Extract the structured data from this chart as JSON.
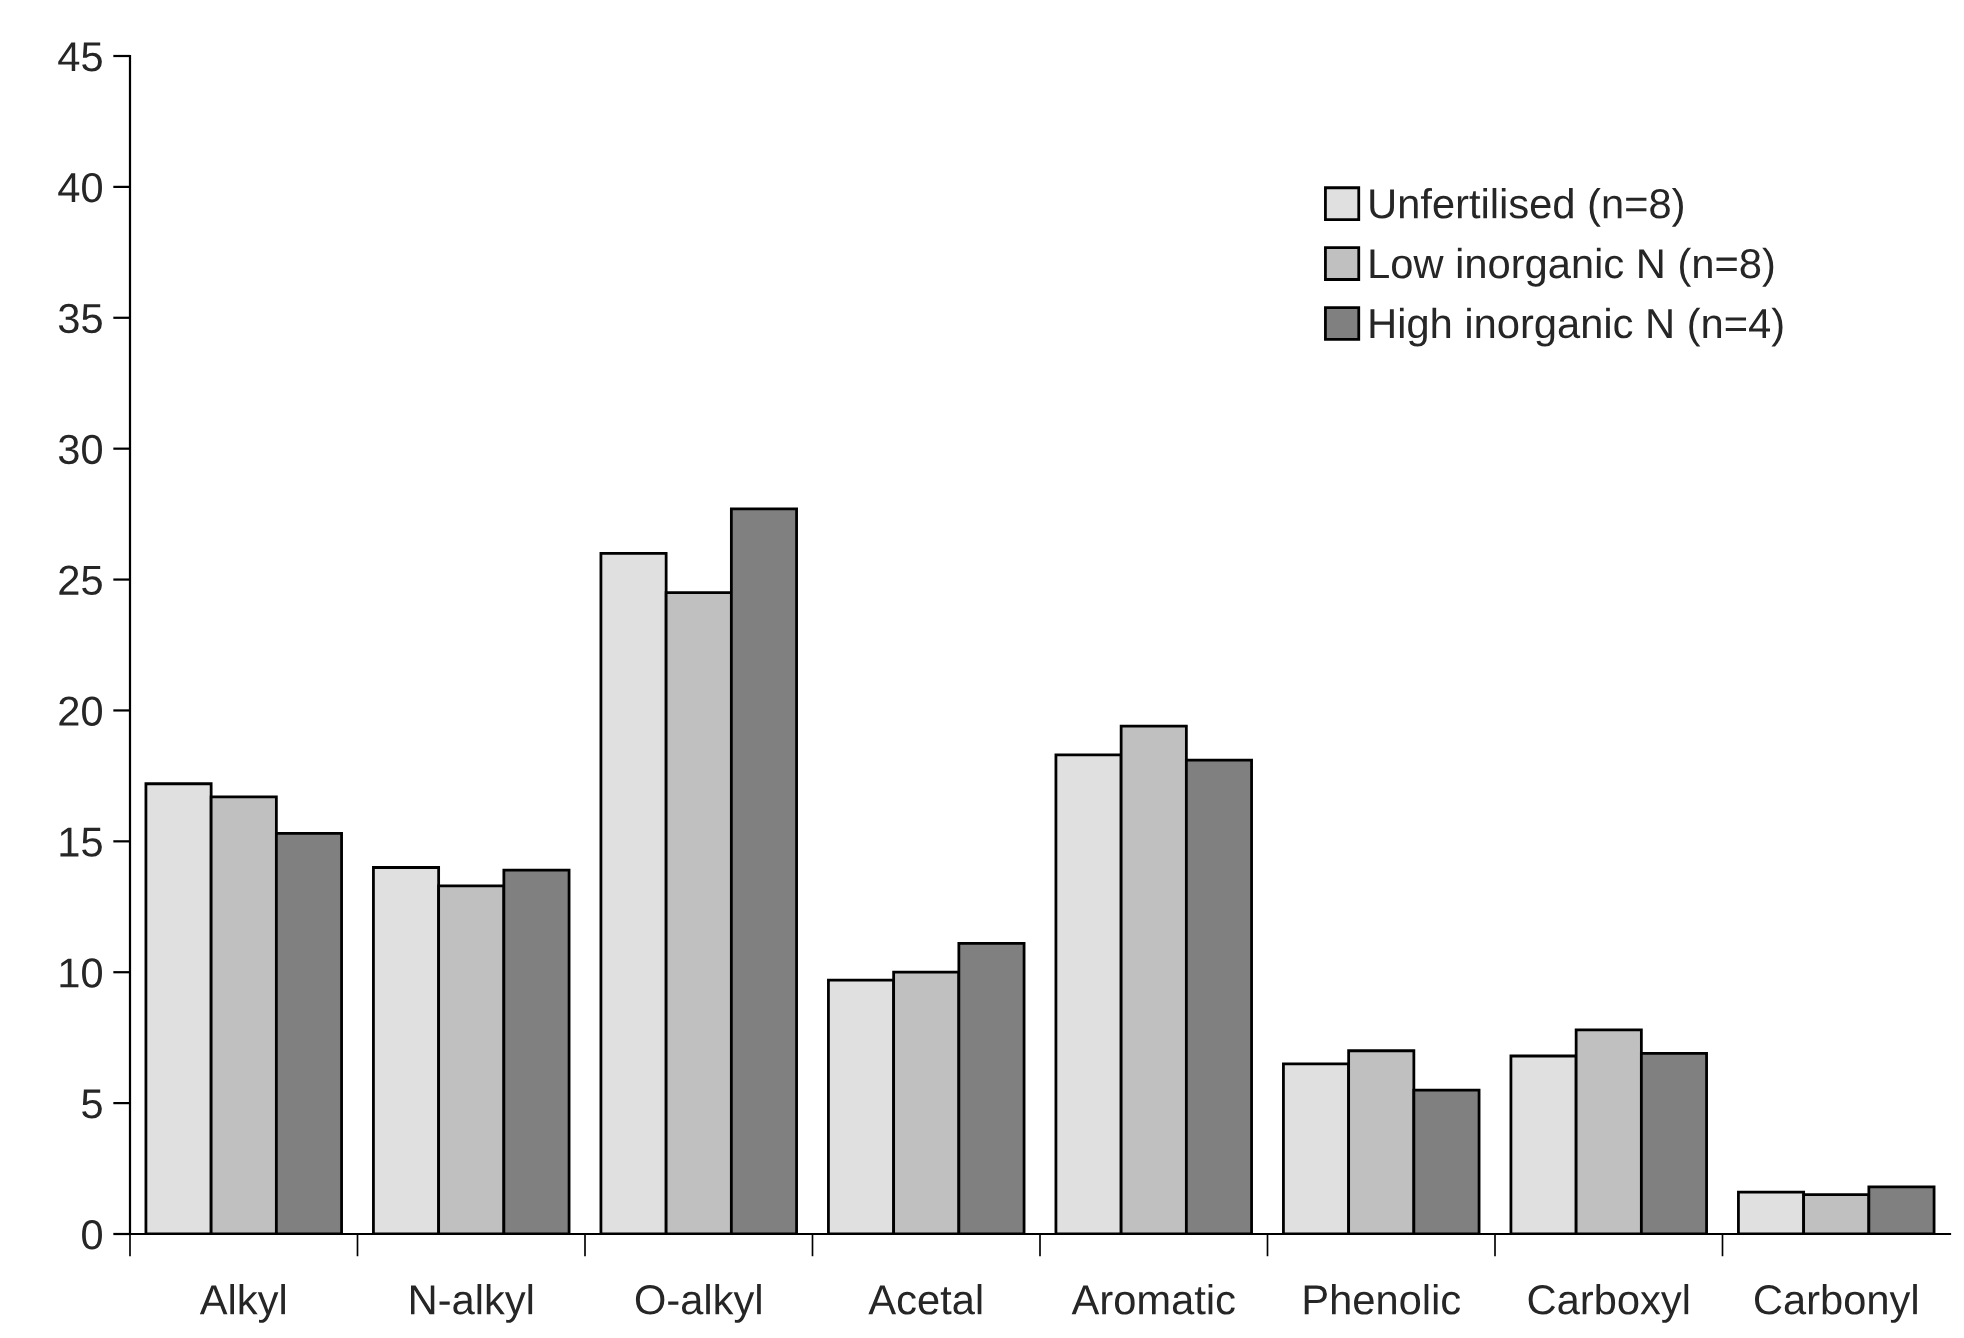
{
  "chart_data": {
    "type": "bar",
    "categories": [
      "Alkyl",
      "N-alkyl",
      "O-alkyl",
      "Acetal",
      "Aromatic",
      "Phenolic",
      "Carboxyl",
      "Carbonyl"
    ],
    "series": [
      {
        "name": "Unfertilised (n=8)",
        "color": "#e0e0e0",
        "values": [
          17.2,
          14.0,
          26.0,
          9.7,
          18.3,
          6.5,
          6.8,
          1.6
        ]
      },
      {
        "name": "Low inorganic N (n=8)",
        "color": "#c0c0c0",
        "values": [
          16.7,
          13.3,
          24.5,
          10.0,
          19.4,
          7.0,
          7.8,
          1.5
        ]
      },
      {
        "name": "High inorganic N (n=4)",
        "color": "#808080",
        "values": [
          15.3,
          13.9,
          27.7,
          11.1,
          18.1,
          5.5,
          6.9,
          1.8
        ]
      }
    ],
    "ylim": [
      0,
      45
    ],
    "yticks": [
      0,
      5,
      10,
      15,
      20,
      25,
      30,
      35,
      40,
      45
    ],
    "grid": false,
    "legend": "top right"
  }
}
